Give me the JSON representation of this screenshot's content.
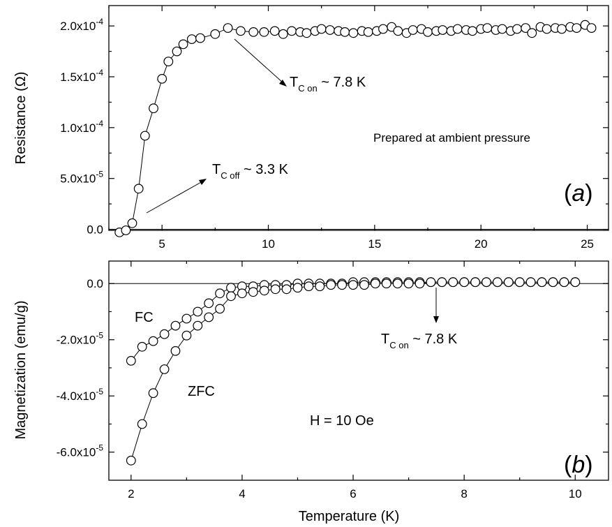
{
  "chart_data": [
    {
      "type": "scatter",
      "panel_label": "(a)",
      "ylabel": "Resistance (Ω)",
      "xlabel": "",
      "xlim": [
        2.5,
        26
      ],
      "ylim": [
        -1e-06,
        0.00022
      ],
      "x_ticks": [
        5,
        10,
        15,
        20,
        25
      ],
      "y_ticks": [
        0,
        5e-05,
        0.0001,
        0.00015,
        0.0002
      ],
      "y_tick_labels": [
        {
          "mant": "0.0",
          "exp": ""
        },
        {
          "mant": "5.0x10",
          "exp": "-5"
        },
        {
          "mant": "1.0x10",
          "exp": "-4"
        },
        {
          "mant": "1.5x10",
          "exp": "-4"
        },
        {
          "mant": "2.0x10",
          "exp": "-4"
        }
      ],
      "zero_line": true,
      "series": [
        {
          "marker": "open-circle",
          "connected": true,
          "x": [
            3.0,
            3.3,
            3.6,
            3.9,
            4.2,
            4.6,
            5.0,
            5.3,
            5.7,
            6.0,
            6.4,
            6.8,
            7.5,
            8.1,
            8.7,
            9.3,
            9.8,
            10.3,
            10.7,
            11.1,
            11.5,
            11.8,
            12.2,
            12.5,
            12.9,
            13.3,
            13.6,
            14.0,
            14.4,
            14.7,
            15.1,
            15.4,
            15.8,
            16.1,
            16.5,
            16.8,
            17.2,
            17.5,
            17.9,
            18.2,
            18.6,
            18.9,
            19.3,
            19.6,
            20.0,
            20.3,
            20.7,
            21.0,
            21.4,
            21.7,
            22.1,
            22.4,
            22.8,
            23.1,
            23.5,
            23.8,
            24.2,
            24.5,
            24.9,
            25.2
          ],
          "y": [
            -3e-06,
            -1e-06,
            6e-06,
            4e-05,
            9.2e-05,
            0.000119,
            0.000148,
            0.000165,
            0.000175,
            0.000182,
            0.000187,
            0.000188,
            0.000192,
            0.000198,
            0.000195,
            0.000194,
            0.000194,
            0.000195,
            0.000192,
            0.000195,
            0.000194,
            0.000193,
            0.000195,
            0.000197,
            0.000196,
            0.000195,
            0.000194,
            0.000193,
            0.000195,
            0.000194,
            0.000195,
            0.000197,
            0.000199,
            0.000195,
            0.000193,
            0.000196,
            0.000197,
            0.000194,
            0.000195,
            0.000196,
            0.000195,
            0.000197,
            0.000196,
            0.000195,
            0.000197,
            0.000198,
            0.000196,
            0.000197,
            0.000195,
            0.000197,
            0.000198,
            0.000193,
            0.000199,
            0.000197,
            0.000198,
            0.000197,
            0.000199,
            0.000198,
            0.000201,
            0.000198
          ]
        }
      ],
      "annotations": {
        "tc_on": {
          "main": "T",
          "sub": "C on",
          "rest": " ~ 7.8 K"
        },
        "tc_off": {
          "main": "T",
          "sub": "C off",
          "rest": " ~ 3.3 K"
        },
        "note": "Prepared at ambient pressure"
      }
    },
    {
      "type": "scatter",
      "panel_label": "(b)",
      "ylabel": "Magnetization (emu/g)",
      "xlabel": "Temperature (K)",
      "xlim": [
        1.6,
        10.6
      ],
      "ylim": [
        -7e-05,
        8e-06
      ],
      "x_ticks": [
        2,
        4,
        6,
        8,
        10
      ],
      "y_ticks": [
        0,
        -2e-05,
        -4e-05,
        -6e-05
      ],
      "y_tick_labels": [
        {
          "mant": "0.0",
          "exp": ""
        },
        {
          "mant": "-2.0x10",
          "exp": "-5"
        },
        {
          "mant": "-4.0x10",
          "exp": "-5"
        },
        {
          "mant": "-6.0x10",
          "exp": "-5"
        }
      ],
      "zero_line": true,
      "series": [
        {
          "name": "FC",
          "marker": "open-circle",
          "connected": true,
          "x": [
            2.0,
            2.2,
            2.4,
            2.6,
            2.8,
            3.0,
            3.2,
            3.4,
            3.6,
            3.8,
            4.0,
            4.2,
            4.4,
            4.6,
            4.8,
            5.0,
            5.2,
            5.4,
            5.6,
            5.8,
            6.0,
            6.2,
            6.4,
            6.6,
            6.8,
            7.0,
            7.2,
            7.4,
            7.6,
            7.8,
            8.0,
            8.2,
            8.4,
            8.6,
            8.8,
            9.0,
            9.2,
            9.4,
            9.6,
            9.8,
            10.0
          ],
          "y": [
            -2.75e-05,
            -2.25e-05,
            -2.05e-05,
            -1.8e-05,
            -1.5e-05,
            -1.25e-05,
            -1e-05,
            -7e-06,
            -3.5e-06,
            -1.5e-06,
            -1e-06,
            -1e-06,
            -5e-07,
            -5e-07,
            -5e-07,
            0,
            0,
            0,
            0,
            0,
            5e-07,
            5e-07,
            5e-07,
            5e-07,
            5e-07,
            5e-07,
            5e-07,
            5e-07,
            5e-07,
            5e-07,
            5e-07,
            5e-07,
            5e-07,
            5e-07,
            5e-07,
            5e-07,
            5e-07,
            5e-07,
            5e-07,
            5e-07,
            5e-07
          ]
        },
        {
          "name": "ZFC",
          "marker": "open-circle",
          "connected": true,
          "x": [
            2.0,
            2.2,
            2.4,
            2.6,
            2.8,
            3.0,
            3.2,
            3.4,
            3.6,
            3.8,
            4.0,
            4.2,
            4.4,
            4.6,
            4.8,
            5.0,
            5.2,
            5.4,
            5.6,
            5.8,
            6.0,
            6.2,
            6.4,
            6.6,
            6.8,
            7.0,
            7.2,
            7.4,
            7.6,
            7.8,
            8.0,
            8.2,
            8.4,
            8.6,
            8.8,
            9.0,
            9.2,
            9.4,
            9.6,
            9.8,
            10.0
          ],
          "y": [
            -6.3e-05,
            -5e-05,
            -3.9e-05,
            -3.05e-05,
            -2.4e-05,
            -1.85e-05,
            -1.5e-05,
            -1.2e-05,
            -9e-06,
            -4.5e-06,
            -3.5e-06,
            -3e-06,
            -2.5e-06,
            -2e-06,
            -2e-06,
            -1.5e-06,
            -1e-06,
            -1e-06,
            -5e-07,
            -5e-07,
            -5e-07,
            -5e-07,
            0,
            0,
            0,
            0,
            0,
            5e-07,
            5e-07,
            5e-07,
            5e-07,
            5e-07,
            5e-07,
            5e-07,
            5e-07,
            5e-07,
            5e-07,
            5e-07,
            5e-07,
            5e-07,
            5e-07
          ]
        }
      ],
      "annotations": {
        "tc_on": {
          "main": "T",
          "sub": "C on",
          "rest": " ~ 7.8 K"
        },
        "field": "H = 10 Oe",
        "fc_label": "FC",
        "zfc_label": "ZFC"
      }
    }
  ]
}
